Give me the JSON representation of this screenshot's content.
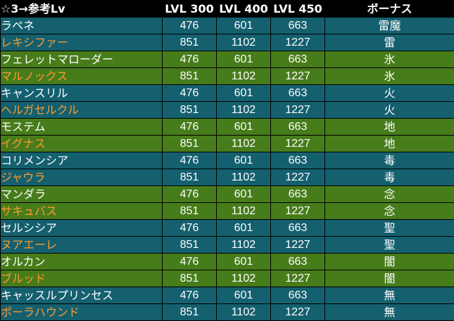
{
  "header": {
    "title": "☆3→参考Lv",
    "lv1": "LVL 300",
    "lv2": "LVL 400",
    "lv3": "LVL 450",
    "bonus": "ボーナス"
  },
  "colors": {
    "teal_row": "#14606f",
    "green_row": "#477c1b",
    "white_text": "#ffffff",
    "orange_text": "#ff9a2e",
    "header_bg": "#000000"
  },
  "rows": [
    {
      "name": "ラペネ",
      "lv300": "476",
      "lv400": "601",
      "lv450": "663",
      "bonus": "雷魔",
      "name_color": "white",
      "row_color": "teal"
    },
    {
      "name": "レキシファー",
      "lv300": "851",
      "lv400": "1102",
      "lv450": "1227",
      "bonus": "雷",
      "name_color": "orange",
      "row_color": "teal"
    },
    {
      "name": "フェレットマローダー",
      "lv300": "476",
      "lv400": "601",
      "lv450": "663",
      "bonus": "氷",
      "name_color": "white",
      "row_color": "green"
    },
    {
      "name": "マルノックス",
      "lv300": "851",
      "lv400": "1102",
      "lv450": "1227",
      "bonus": "氷",
      "name_color": "orange",
      "row_color": "green"
    },
    {
      "name": "キャンスリル",
      "lv300": "476",
      "lv400": "601",
      "lv450": "663",
      "bonus": "火",
      "name_color": "white",
      "row_color": "teal"
    },
    {
      "name": "ヘルガセルクル",
      "lv300": "851",
      "lv400": "1102",
      "lv450": "1227",
      "bonus": "火",
      "name_color": "orange",
      "row_color": "teal"
    },
    {
      "name": "モステム",
      "lv300": "476",
      "lv400": "601",
      "lv450": "663",
      "bonus": "地",
      "name_color": "white",
      "row_color": "green"
    },
    {
      "name": "イグナス",
      "lv300": "851",
      "lv400": "1102",
      "lv450": "1227",
      "bonus": "地",
      "name_color": "orange",
      "row_color": "green"
    },
    {
      "name": "コリメンシア",
      "lv300": "476",
      "lv400": "601",
      "lv450": "663",
      "bonus": "毒",
      "name_color": "white",
      "row_color": "teal"
    },
    {
      "name": "ジャウラ",
      "lv300": "851",
      "lv400": "1102",
      "lv450": "1227",
      "bonus": "毒",
      "name_color": "orange",
      "row_color": "teal"
    },
    {
      "name": "マンダラ",
      "lv300": "476",
      "lv400": "601",
      "lv450": "663",
      "bonus": "念",
      "name_color": "white",
      "row_color": "green"
    },
    {
      "name": "サキュバス",
      "lv300": "851",
      "lv400": "1102",
      "lv450": "1227",
      "bonus": "念",
      "name_color": "orange",
      "row_color": "green"
    },
    {
      "name": "セルシシア",
      "lv300": "476",
      "lv400": "601",
      "lv450": "663",
      "bonus": "聖",
      "name_color": "white",
      "row_color": "teal"
    },
    {
      "name": "ヌアエーレ",
      "lv300": "851",
      "lv400": "1102",
      "lv450": "1227",
      "bonus": "聖",
      "name_color": "orange",
      "row_color": "teal"
    },
    {
      "name": "オルカン",
      "lv300": "476",
      "lv400": "601",
      "lv450": "663",
      "bonus": "闇",
      "name_color": "white",
      "row_color": "green"
    },
    {
      "name": "ブルッド",
      "lv300": "851",
      "lv400": "1102",
      "lv450": "1227",
      "bonus": "闇",
      "name_color": "orange",
      "row_color": "green"
    },
    {
      "name": "キャッスルプリンセス",
      "lv300": "476",
      "lv400": "601",
      "lv450": "663",
      "bonus": "無",
      "name_color": "white",
      "row_color": "teal"
    },
    {
      "name": "ポーラハウンド",
      "lv300": "851",
      "lv400": "1102",
      "lv450": "1227",
      "bonus": "無",
      "name_color": "orange",
      "row_color": "teal"
    }
  ]
}
